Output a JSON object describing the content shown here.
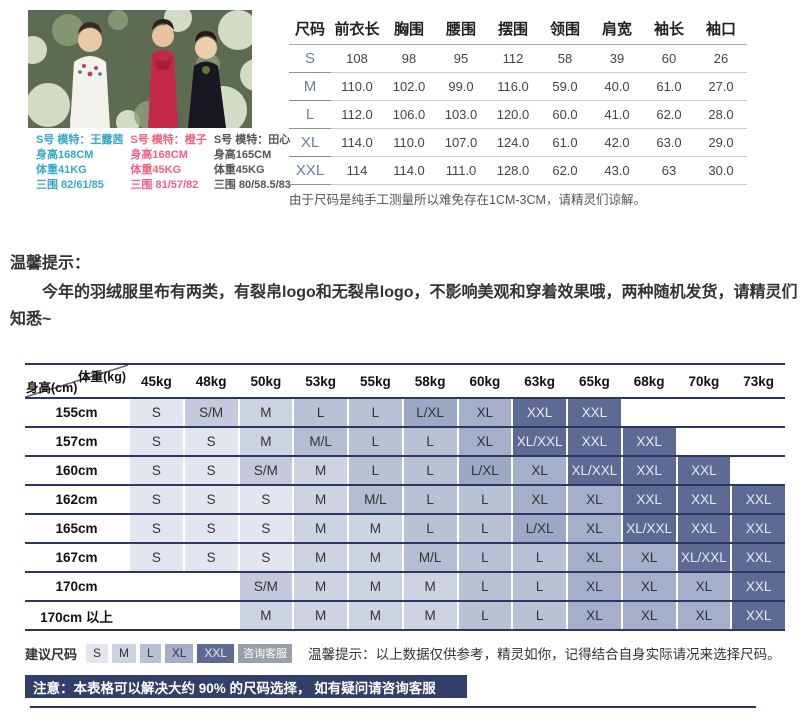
{
  "product": {
    "image_alt": "three-models-photo",
    "models": [
      {
        "label": "S号 模特：王露茜",
        "height": "身高168CM",
        "weight": "体重41KG",
        "measurements": "三围 82/61/85",
        "color": "#35a8cc"
      },
      {
        "label": "S号 模特：橙子",
        "height": "身高168CM",
        "weight": "体重45KG",
        "measurements": "三围 81/57/82",
        "color": "#f4607e"
      },
      {
        "label": "S号 模特：田心",
        "height": "身高165CM",
        "weight": "体重45KG",
        "measurements": "三围 80/58.5/83",
        "color": "#555555"
      }
    ]
  },
  "spec_table": {
    "headers": [
      "尺码",
      "前衣长",
      "胸围",
      "腰围",
      "摆围",
      "领围",
      "肩宽",
      "袖长",
      "袖口"
    ],
    "rows": [
      [
        "S",
        "108",
        "98",
        "95",
        "112",
        "58",
        "39",
        "60",
        "26"
      ],
      [
        "M",
        "110.0",
        "102.0",
        "99.0",
        "116.0",
        "59.0",
        "40.0",
        "61.0",
        "27.0"
      ],
      [
        "L",
        "112.0",
        "106.0",
        "103.0",
        "120.0",
        "60.0",
        "41.0",
        "62.0",
        "28.0"
      ],
      [
        "XL",
        "114.0",
        "110.0",
        "107.0",
        "124.0",
        "61.0",
        "42.0",
        "63.0",
        "29.0"
      ],
      [
        "XXL",
        "114",
        "114.0",
        "111.0",
        "128.0",
        "62.0",
        "43.0",
        "63",
        "30.0"
      ]
    ],
    "note": "由于尺码是纯手工测量所以难免存在1CM-3CM，请精灵们谅解。"
  },
  "tips": {
    "title": "温馨提示：",
    "body": "今年的羽绒服里布有两类，有裂帛logo和无裂帛logo，不影响美观和穿着效果哦，两种随机发货，请精灵们知悉~"
  },
  "chart_data": {
    "type": "heatmap",
    "title": "身高/体重尺码对照表",
    "corner_top": "体重(kg)",
    "corner_bottom": "身高(cm)",
    "weight_headers": [
      "45kg",
      "48kg",
      "50kg",
      "53kg",
      "55kg",
      "58kg",
      "60kg",
      "63kg",
      "65kg",
      "68kg",
      "70kg",
      "73kg"
    ],
    "rows": [
      {
        "height": "155cm",
        "cells": [
          "S",
          "S/M",
          "M",
          "L",
          "L",
          "L/XL",
          "XL",
          "XXL",
          "XXL",
          "",
          "",
          ""
        ]
      },
      {
        "height": "157cm",
        "cells": [
          "S",
          "S",
          "M",
          "M/L",
          "L",
          "L",
          "XL",
          "XL/XXL",
          "XXL",
          "XXL",
          "",
          ""
        ]
      },
      {
        "height": "160cm",
        "cells": [
          "S",
          "S",
          "S/M",
          "M",
          "L",
          "L",
          "L/XL",
          "XL",
          "XL/XXL",
          "XXL",
          "XXL",
          ""
        ]
      },
      {
        "height": "162cm",
        "cells": [
          "S",
          "S",
          "S",
          "M",
          "M/L",
          "L",
          "L",
          "XL",
          "XL",
          "XXL",
          "XXL",
          "XXL"
        ]
      },
      {
        "height": "165cm",
        "cells": [
          "S",
          "S",
          "S",
          "M",
          "M",
          "L",
          "L",
          "L/XL",
          "XL",
          "XL/XXL",
          "XXL",
          "XXL"
        ]
      },
      {
        "height": "167cm",
        "cells": [
          "S",
          "S",
          "S",
          "M",
          "M",
          "M/L",
          "L",
          "L",
          "XL",
          "XL",
          "XL/XXL",
          "XXL"
        ]
      },
      {
        "height": "170cm",
        "cells": [
          "",
          "",
          "S/M",
          "M",
          "M",
          "M",
          "L",
          "L",
          "XL",
          "XL",
          "XL",
          "XXL"
        ]
      },
      {
        "height": "170cm 以上",
        "cells": [
          "",
          "",
          "M",
          "M",
          "M",
          "M",
          "L",
          "L",
          "XL",
          "XL",
          "XL",
          "XXL"
        ]
      }
    ],
    "size_colors": {
      "S": {
        "bg": "#e3e6ee",
        "fg": "#333333"
      },
      "S/M": {
        "bg": "#c4cadc",
        "fg": "#333333"
      },
      "M": {
        "bg": "#ced3e2",
        "fg": "#333333"
      },
      "M/L": {
        "bg": "#b5bdd3",
        "fg": "#333333"
      },
      "L": {
        "bg": "#b9c1d5",
        "fg": "#333333"
      },
      "L/XL": {
        "bg": "#9da8c5",
        "fg": "#333333"
      },
      "XL": {
        "bg": "#a5afca",
        "fg": "#333333"
      },
      "XL/XXL": {
        "bg": "#5d6a94",
        "fg": "#e8eaf2"
      },
      "XXL": {
        "bg": "#5d6a94",
        "fg": "#e8eaf2"
      },
      "": {
        "bg": "#ffffff",
        "fg": "#333333"
      }
    }
  },
  "suggestion": {
    "label": "建议尺码",
    "sizes": [
      "S",
      "M",
      "L",
      "XL",
      "XXL"
    ],
    "service_label": "咨询客服",
    "service_bg": "#9aa0ab",
    "service_fg": "#ffffff",
    "tip": "温馨提示：以上数据仅供参考，精灵如你，记得结合自身实际请况来选择尺码。"
  },
  "notice": {
    "text": "注意：本表格可以解决大约 90% 的尺码选择， 如有疑问请咨询客服",
    "bg": "#333f6b"
  }
}
